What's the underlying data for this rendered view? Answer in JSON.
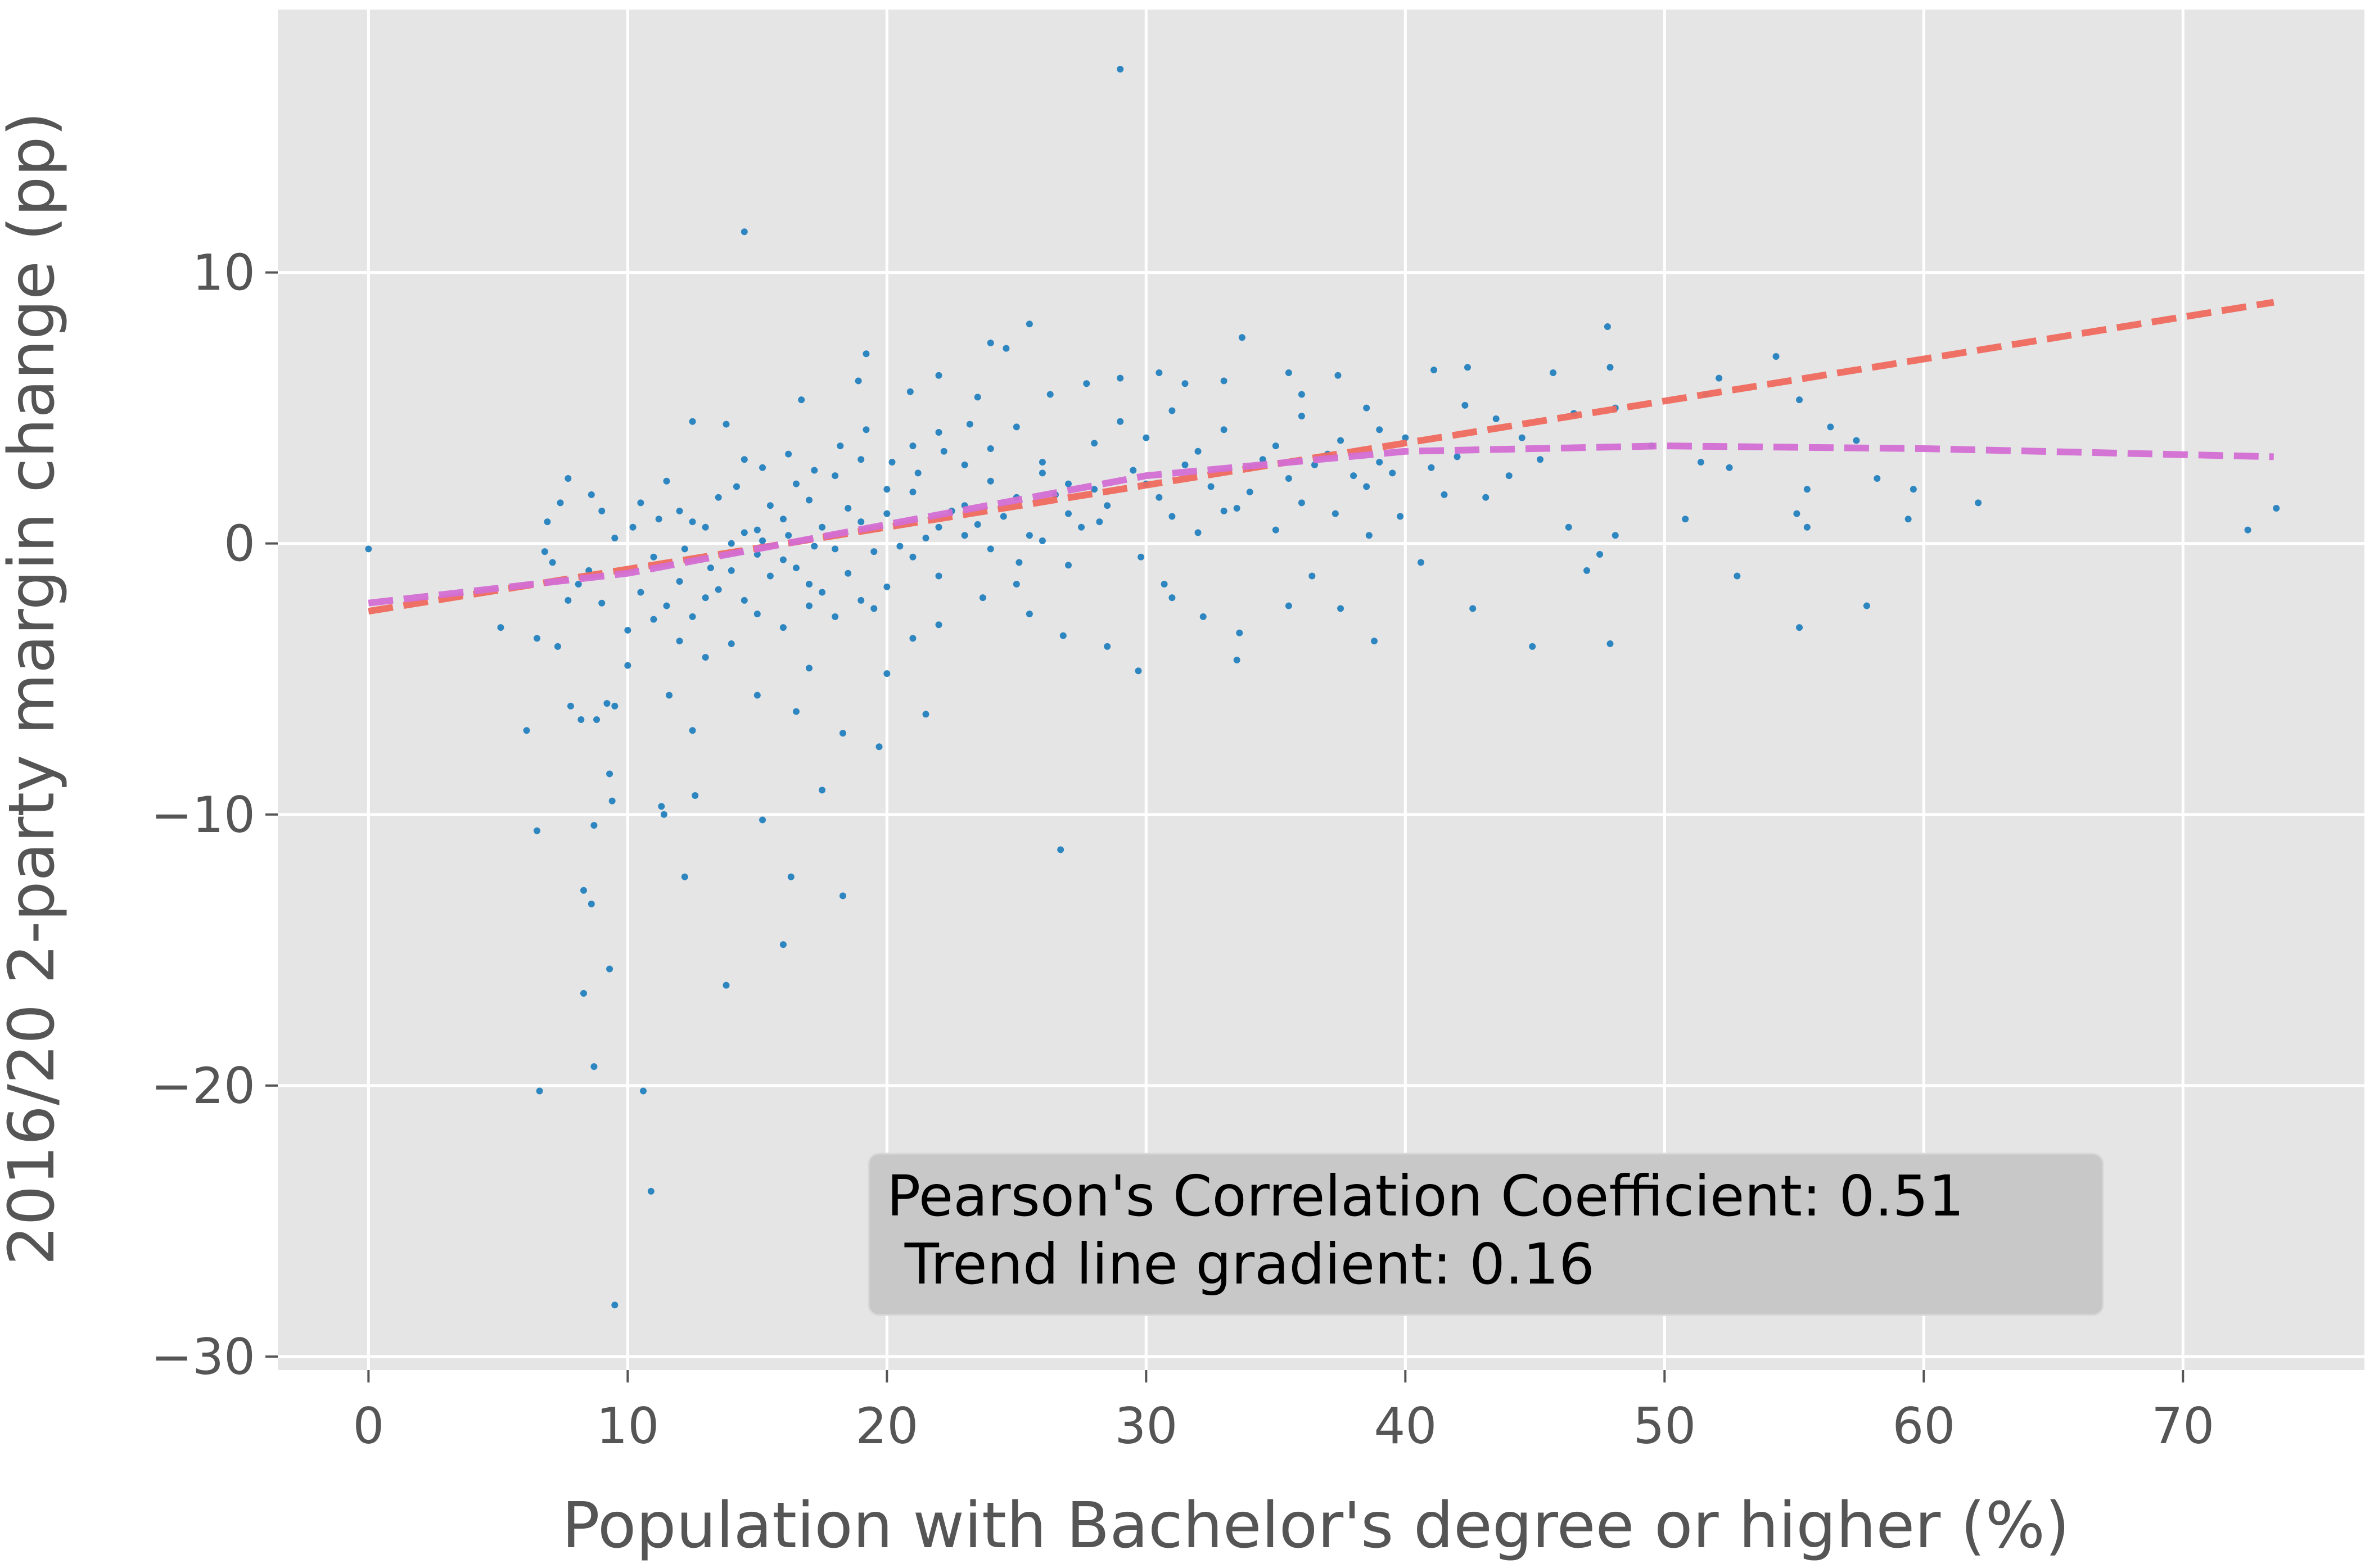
{
  "chart_data": {
    "type": "scatter",
    "title": "",
    "xlabel": "Population with Bachelor's degree or higher (%)",
    "ylabel": "2016/20 2-party margin change (pp)",
    "xlim": [
      -3.5,
      77
    ],
    "ylim": [
      -30.5,
      19.7
    ],
    "x_ticks": [
      0,
      10,
      20,
      30,
      40,
      50,
      60,
      70
    ],
    "y_ticks": [
      -30,
      -20,
      -10,
      0,
      10
    ],
    "x_tick_labels": [
      "0",
      "10",
      "20",
      "30",
      "40",
      "50",
      "60",
      "70"
    ],
    "y_tick_labels": [
      "−30",
      "−20",
      "−10",
      "0",
      "10"
    ],
    "grid": true,
    "background": "#e5e5e5",
    "point_color": "#2e86c1",
    "series": [
      {
        "kind": "points",
        "points": [
          [
            0,
            -0.2
          ],
          [
            29,
            17.5
          ],
          [
            14.5,
            11.5
          ],
          [
            25.5,
            8.1
          ],
          [
            24,
            7.4
          ],
          [
            24.6,
            7.2
          ],
          [
            33.7,
            7.6
          ],
          [
            19.2,
            7.0
          ],
          [
            47.8,
            8.0
          ],
          [
            30.5,
            6.3
          ],
          [
            35.5,
            6.3
          ],
          [
            37.4,
            6.2
          ],
          [
            41.1,
            6.4
          ],
          [
            42.4,
            6.5
          ],
          [
            45.7,
            6.3
          ],
          [
            47.9,
            6.5
          ],
          [
            52.1,
            6.1
          ],
          [
            54.3,
            6.9
          ],
          [
            48.1,
            5.0
          ],
          [
            51.6,
            5.5
          ],
          [
            55.2,
            5.3
          ],
          [
            56.4,
            4.3
          ],
          [
            57.4,
            3.8
          ],
          [
            49.5,
            3.6
          ],
          [
            58.2,
            2.4
          ],
          [
            51.4,
            3.0
          ],
          [
            52.5,
            2.8
          ],
          [
            55.5,
            2.0
          ],
          [
            59.6,
            2.0
          ],
          [
            62.1,
            1.5
          ],
          [
            73.6,
            1.3
          ],
          [
            72.5,
            0.5
          ],
          [
            59.4,
            0.9
          ],
          [
            55.1,
            1.1
          ],
          [
            55.5,
            0.6
          ],
          [
            48.1,
            0.3
          ],
          [
            50.8,
            0.9
          ],
          [
            46.3,
            0.6
          ],
          [
            47.5,
            -0.4
          ],
          [
            47.0,
            -1.0
          ],
          [
            52.8,
            -1.2
          ],
          [
            57.8,
            -2.3
          ],
          [
            55.2,
            -3.1
          ],
          [
            44.9,
            -3.8
          ],
          [
            47.9,
            -3.7
          ],
          [
            42.6,
            -2.4
          ],
          [
            38.8,
            -3.6
          ],
          [
            37.5,
            -2.4
          ],
          [
            40.6,
            -0.7
          ],
          [
            36.4,
            -1.2
          ],
          [
            35.5,
            -2.3
          ],
          [
            33.6,
            -3.3
          ],
          [
            32.2,
            -2.7
          ],
          [
            30.7,
            -1.5
          ],
          [
            29.8,
            -0.5
          ],
          [
            31.0,
            -2.0
          ],
          [
            29.7,
            -4.7
          ],
          [
            33.5,
            -4.3
          ],
          [
            28.5,
            -3.8
          ],
          [
            26.8,
            -3.4
          ],
          [
            25.5,
            -2.6
          ],
          [
            25.0,
            -1.5
          ],
          [
            23.7,
            -2.0
          ],
          [
            22.0,
            -3.0
          ],
          [
            21.0,
            -3.5
          ],
          [
            20.0,
            -4.8
          ],
          [
            19.7,
            -7.5
          ],
          [
            21.5,
            -6.3
          ],
          [
            18.3,
            -7.0
          ],
          [
            17.0,
            -4.6
          ],
          [
            16.5,
            -6.2
          ],
          [
            15.0,
            -5.6
          ],
          [
            26.7,
            -11.3
          ],
          [
            17.5,
            -9.1
          ],
          [
            18.3,
            -13.0
          ],
          [
            16.3,
            -12.3
          ],
          [
            16.0,
            -14.8
          ],
          [
            15.2,
            -10.2
          ],
          [
            13.8,
            -16.3
          ],
          [
            12.5,
            -6.9
          ],
          [
            12.2,
            -12.3
          ],
          [
            11.6,
            -5.6
          ],
          [
            11.4,
            -10.0
          ],
          [
            12.6,
            -9.3
          ],
          [
            11.3,
            -9.7
          ],
          [
            10.6,
            -20.2
          ],
          [
            10.9,
            -23.9
          ],
          [
            9.5,
            -28.1
          ],
          [
            9.3,
            -15.7
          ],
          [
            8.7,
            -19.3
          ],
          [
            8.6,
            -13.3
          ],
          [
            8.3,
            -12.8
          ],
          [
            9.3,
            -8.5
          ],
          [
            9.4,
            -9.5
          ],
          [
            8.7,
            -10.4
          ],
          [
            8.3,
            -16.6
          ],
          [
            6.6,
            -20.2
          ],
          [
            6.5,
            -10.6
          ],
          [
            6.1,
            -6.9
          ],
          [
            7.8,
            -6.0
          ],
          [
            8.2,
            -6.5
          ],
          [
            8.8,
            -6.5
          ],
          [
            9.2,
            -5.9
          ],
          [
            9.5,
            -6.0
          ],
          [
            10.0,
            -4.5
          ],
          [
            6.5,
            -3.5
          ],
          [
            5.1,
            -3.1
          ],
          [
            7.3,
            -3.8
          ],
          [
            7.7,
            -2.1
          ],
          [
            8.1,
            -1.5
          ],
          [
            7.1,
            -0.7
          ],
          [
            6.8,
            -0.3
          ],
          [
            6.9,
            0.8
          ],
          [
            7.4,
            1.5
          ],
          [
            7.7,
            2.4
          ],
          [
            8.6,
            1.8
          ],
          [
            9.0,
            1.2
          ],
          [
            12.5,
            4.5
          ],
          [
            13.8,
            4.4
          ],
          [
            14.5,
            3.1
          ],
          [
            16.7,
            5.3
          ],
          [
            18.9,
            6.0
          ],
          [
            20.9,
            5.6
          ],
          [
            22.0,
            6.2
          ],
          [
            23.5,
            5.4
          ],
          [
            26.3,
            5.5
          ],
          [
            27.7,
            5.9
          ],
          [
            29.0,
            6.1
          ],
          [
            31.5,
            5.9
          ],
          [
            33.0,
            6.0
          ],
          [
            36.0,
            5.5
          ],
          [
            38.5,
            5.0
          ],
          [
            39.0,
            4.2
          ],
          [
            42.3,
            5.1
          ],
          [
            43.5,
            4.6
          ],
          [
            44.5,
            3.9
          ],
          [
            46.5,
            4.8
          ],
          [
            45.2,
            3.1
          ],
          [
            44.0,
            2.5
          ],
          [
            43.1,
            1.7
          ],
          [
            41.5,
            1.8
          ],
          [
            39.8,
            1.0
          ],
          [
            38.6,
            0.3
          ],
          [
            37.3,
            1.1
          ],
          [
            36.0,
            1.5
          ],
          [
            35.0,
            0.5
          ],
          [
            34.0,
            1.9
          ],
          [
            33.0,
            1.2
          ],
          [
            32.0,
            0.4
          ],
          [
            31.0,
            1.0
          ],
          [
            30.0,
            2.2
          ],
          [
            28.2,
            0.8
          ],
          [
            27.0,
            -0.8
          ],
          [
            26.0,
            0.1
          ],
          [
            25.1,
            -0.7
          ],
          [
            24.0,
            -0.2
          ],
          [
            23.0,
            0.3
          ],
          [
            22.0,
            -1.2
          ],
          [
            21.0,
            -0.5
          ],
          [
            20.0,
            -1.6
          ],
          [
            19.0,
            -2.1
          ],
          [
            18.0,
            -2.7
          ],
          [
            17.0,
            -2.3
          ],
          [
            16.0,
            -3.1
          ],
          [
            15.0,
            -2.6
          ],
          [
            14.0,
            -3.7
          ],
          [
            13.0,
            -4.2
          ],
          [
            12.0,
            -3.6
          ],
          [
            11.0,
            -2.8
          ],
          [
            10.0,
            -3.2
          ],
          [
            9.0,
            -2.2
          ],
          [
            8.5,
            -1.0
          ],
          [
            9.5,
            0.2
          ],
          [
            10.5,
            1.5
          ],
          [
            11.5,
            2.3
          ],
          [
            12.0,
            1.2
          ],
          [
            13.0,
            0.6
          ],
          [
            14.0,
            0.0
          ],
          [
            15.0,
            -0.4
          ],
          [
            16.0,
            0.9
          ],
          [
            17.0,
            1.6
          ],
          [
            18.0,
            2.5
          ],
          [
            19.0,
            3.1
          ],
          [
            20.0,
            2.0
          ],
          [
            21.0,
            3.6
          ],
          [
            22.0,
            4.1
          ],
          [
            23.0,
            2.9
          ],
          [
            24.0,
            3.5
          ],
          [
            25.0,
            4.3
          ],
          [
            26.0,
            3.0
          ],
          [
            27.0,
            2.2
          ],
          [
            28.0,
            3.7
          ],
          [
            29.0,
            4.5
          ],
          [
            30.0,
            3.9
          ],
          [
            31.0,
            4.9
          ],
          [
            32.0,
            3.4
          ],
          [
            33.0,
            4.2
          ],
          [
            34.0,
            2.8
          ],
          [
            35.0,
            3.6
          ],
          [
            36.0,
            4.7
          ],
          [
            37.0,
            3.3
          ],
          [
            38.0,
            2.5
          ],
          [
            39.0,
            3.0
          ],
          [
            40.0,
            3.9
          ],
          [
            41.0,
            2.8
          ],
          [
            42.0,
            3.2
          ],
          [
            11.0,
            -0.5
          ],
          [
            12.0,
            -1.4
          ],
          [
            13.0,
            -2.0
          ],
          [
            14.0,
            -1.0
          ],
          [
            15.0,
            0.5
          ],
          [
            16.0,
            -0.6
          ],
          [
            17.0,
            -1.5
          ],
          [
            18.0,
            -0.2
          ],
          [
            19.0,
            0.8
          ],
          [
            20.0,
            1.1
          ],
          [
            21.0,
            1.9
          ],
          [
            22.0,
            0.6
          ],
          [
            23.0,
            1.4
          ],
          [
            24.0,
            2.3
          ],
          [
            25.0,
            1.7
          ],
          [
            26.0,
            2.6
          ],
          [
            27.0,
            1.1
          ],
          [
            28.0,
            2.0
          ],
          [
            12.5,
            0.8
          ],
          [
            13.5,
            1.7
          ],
          [
            14.5,
            0.4
          ],
          [
            15.5,
            1.4
          ],
          [
            16.5,
            2.2
          ],
          [
            17.5,
            0.6
          ],
          [
            18.5,
            1.3
          ],
          [
            19.5,
            -0.3
          ],
          [
            10.5,
            -1.8
          ],
          [
            11.5,
            -2.3
          ],
          [
            12.5,
            -2.7
          ],
          [
            13.5,
            -1.7
          ],
          [
            14.5,
            -2.1
          ],
          [
            15.5,
            -1.2
          ],
          [
            16.5,
            -0.9
          ],
          [
            17.5,
            -1.8
          ],
          [
            18.5,
            -1.1
          ],
          [
            19.5,
            -2.4
          ],
          [
            20.5,
            -0.1
          ],
          [
            21.5,
            0.2
          ],
          [
            22.5,
            1.2
          ],
          [
            23.5,
            0.7
          ],
          [
            24.5,
            1.0
          ],
          [
            25.5,
            0.3
          ],
          [
            26.5,
            1.8
          ],
          [
            27.5,
            0.6
          ],
          [
            28.5,
            1.4
          ],
          [
            29.5,
            2.7
          ],
          [
            30.5,
            1.7
          ],
          [
            31.5,
            2.9
          ],
          [
            32.5,
            2.1
          ],
          [
            33.5,
            1.3
          ],
          [
            34.5,
            3.1
          ],
          [
            35.5,
            2.4
          ],
          [
            36.5,
            2.9
          ],
          [
            37.5,
            3.8
          ],
          [
            38.5,
            2.1
          ],
          [
            39.5,
            2.6
          ],
          [
            14.2,
            2.1
          ],
          [
            15.2,
            2.8
          ],
          [
            16.2,
            3.3
          ],
          [
            17.2,
            2.7
          ],
          [
            18.2,
            3.6
          ],
          [
            19.2,
            4.2
          ],
          [
            20.2,
            3.0
          ],
          [
            21.2,
            2.6
          ],
          [
            22.2,
            3.4
          ],
          [
            23.2,
            4.4
          ],
          [
            10.2,
            0.6
          ],
          [
            11.2,
            0.9
          ],
          [
            12.2,
            -0.2
          ],
          [
            13.2,
            -0.9
          ],
          [
            14.2,
            -0.3
          ],
          [
            15.2,
            0.1
          ],
          [
            16.2,
            0.3
          ],
          [
            17.2,
            -0.1
          ]
        ]
      },
      {
        "kind": "dashed-line",
        "name": "",
        "color": "#ef6a5e",
        "x": [
          0,
          73.5
        ],
        "y": [
          -2.5,
          8.9
        ]
      },
      {
        "kind": "dashed-line",
        "name": "",
        "color": "#d36ed3",
        "x": [
          0,
          10,
          20,
          30,
          40,
          50,
          60,
          73.5
        ],
        "y": [
          -2.2,
          -1.1,
          0.7,
          2.5,
          3.4,
          3.6,
          3.5,
          3.2
        ]
      }
    ],
    "annotation": {
      "lines": [
        "Pearson's Correlation Coefficient: 0.51",
        " Trend line gradient: 0.16"
      ],
      "placement": "lower-center"
    }
  }
}
